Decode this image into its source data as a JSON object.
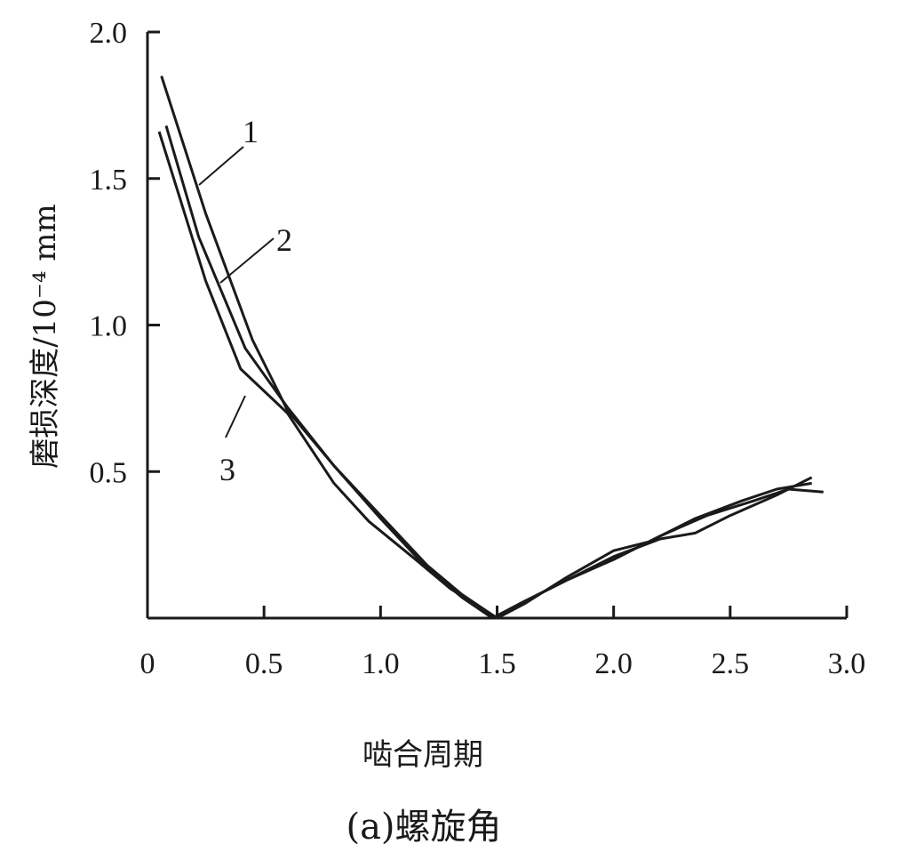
{
  "chart_data": {
    "type": "line",
    "xlabel": "啮合周期",
    "ylabel": "磨损深度/10⁻⁴ mm",
    "caption": "(a)螺旋角",
    "xlim": [
      0,
      3.0
    ],
    "ylim": [
      0,
      2.0
    ],
    "x_ticks": [
      0,
      0.5,
      1.0,
      1.5,
      2.0,
      2.5,
      3.0
    ],
    "x_tick_labels": [
      "0",
      "0.5",
      "1.0",
      "1.5",
      "2.0",
      "2.5",
      "3.0"
    ],
    "y_ticks": [
      0.5,
      1.0,
      1.5,
      2.0
    ],
    "y_tick_labels": [
      "0.5",
      "1.0",
      "1.5",
      "2.0"
    ],
    "grid": false,
    "legend": "inline labels",
    "series": [
      {
        "name": "1",
        "points": [
          [
            0.06,
            1.85
          ],
          [
            0.25,
            1.38
          ],
          [
            0.45,
            0.95
          ],
          [
            0.6,
            0.71
          ],
          [
            0.8,
            0.52
          ],
          [
            1.0,
            0.35
          ],
          [
            1.2,
            0.18
          ],
          [
            1.35,
            0.08
          ],
          [
            1.5,
            0.0
          ],
          [
            1.6,
            0.05
          ],
          [
            1.8,
            0.13
          ],
          [
            2.0,
            0.21
          ],
          [
            2.2,
            0.27
          ],
          [
            2.35,
            0.29
          ],
          [
            2.5,
            0.35
          ],
          [
            2.7,
            0.42
          ],
          [
            2.85,
            0.48
          ]
        ]
      },
      {
        "name": "2",
        "points": [
          [
            0.08,
            1.68
          ],
          [
            0.22,
            1.3
          ],
          [
            0.42,
            0.92
          ],
          [
            0.6,
            0.72
          ],
          [
            0.8,
            0.52
          ],
          [
            1.0,
            0.34
          ],
          [
            1.2,
            0.17
          ],
          [
            1.35,
            0.07
          ],
          [
            1.48,
            0.0
          ],
          [
            1.6,
            0.05
          ],
          [
            1.8,
            0.13
          ],
          [
            2.0,
            0.2
          ],
          [
            2.2,
            0.28
          ],
          [
            2.4,
            0.35
          ],
          [
            2.6,
            0.4
          ],
          [
            2.75,
            0.44
          ],
          [
            2.9,
            0.43
          ]
        ]
      },
      {
        "name": "3",
        "points": [
          [
            0.05,
            1.66
          ],
          [
            0.25,
            1.15
          ],
          [
            0.4,
            0.85
          ],
          [
            0.6,
            0.7
          ],
          [
            0.8,
            0.46
          ],
          [
            0.95,
            0.33
          ],
          [
            1.15,
            0.2
          ],
          [
            1.3,
            0.1
          ],
          [
            1.5,
            0.0
          ],
          [
            1.62,
            0.05
          ],
          [
            1.8,
            0.14
          ],
          [
            2.0,
            0.23
          ],
          [
            2.15,
            0.26
          ],
          [
            2.35,
            0.34
          ],
          [
            2.55,
            0.4
          ],
          [
            2.7,
            0.44
          ],
          [
            2.85,
            0.46
          ]
        ]
      }
    ],
    "annotations": [
      "1",
      "2",
      "3"
    ]
  }
}
